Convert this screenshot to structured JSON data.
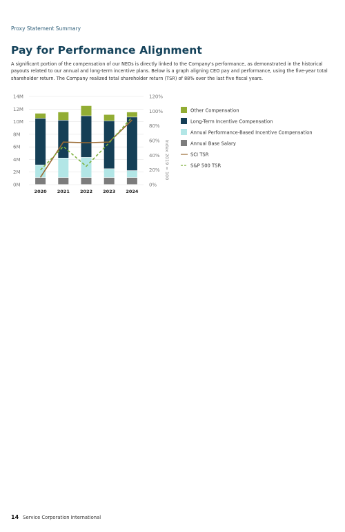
{
  "header": {
    "section_label": "Proxy Statement Summary"
  },
  "page_title": "Pay for Performance Alignment",
  "intro": "A significant portion of the compensation of our NEOs is directly linked to the Company's performance, as demonstrated in the historical payouts related to our annual and long-term incentive plans. Below is a graph aligning CEO pay and performance, using the five-year total shareholder return. The Company realized total shareholder return (TSR) of 88% over the last five fiscal years.",
  "chart_data": {
    "type": "bar",
    "subtype": "stacked-bar-with-lines",
    "categories": [
      "2020",
      "2021",
      "2022",
      "2023",
      "2024"
    ],
    "left_axis": {
      "ticks": [
        "0M",
        "2M",
        "4M",
        "6M",
        "8M",
        "10M",
        "12M",
        "14M"
      ],
      "ylim": [
        0,
        14
      ]
    },
    "right_axis": {
      "label": "Index 2019 = 100",
      "ticks": [
        "0%",
        "20%",
        "40%",
        "60%",
        "80%",
        "100%",
        "120%"
      ],
      "ylim": [
        0,
        120
      ]
    },
    "series": [
      {
        "name": "Annual Base Salary",
        "values": [
          1.1,
          1.1,
          1.1,
          1.1,
          1.1
        ],
        "color": "#7c7c7c"
      },
      {
        "name": "Annual Performance-Based Incentive Compensation",
        "values": [
          2.0,
          3.1,
          3.2,
          1.4,
          1.1
        ],
        "color": "#b2e6e6"
      },
      {
        "name": "Long-Term Incentive Compensation",
        "values": [
          7.4,
          6.0,
          6.6,
          7.6,
          8.5
        ],
        "color": "#153f56"
      },
      {
        "name": "Other Compensation",
        "values": [
          0.8,
          1.3,
          1.6,
          1.0,
          0.8
        ],
        "color": "#92ad34"
      }
    ],
    "lines": [
      {
        "name": "SCI TSR",
        "values": [
          10,
          58,
          57,
          58,
          88
        ],
        "color": "#9a6a33",
        "style": "solid"
      },
      {
        "name": "S&P 500 TSR",
        "values": [
          20,
          52,
          25,
          57,
          92
        ],
        "color": "#7fb13f",
        "style": "dashed"
      }
    ],
    "legend_order": [
      "Other Compensation",
      "Long-Term Incentive Compensation",
      "Annual Performance-Based Incentive Compensation",
      "Annual Base Salary",
      "SCI TSR",
      "S&P 500 TSR"
    ],
    "legend_position": "right",
    "grid": true
  },
  "footer": {
    "page_number": "14",
    "company": "Service Corporation International"
  }
}
